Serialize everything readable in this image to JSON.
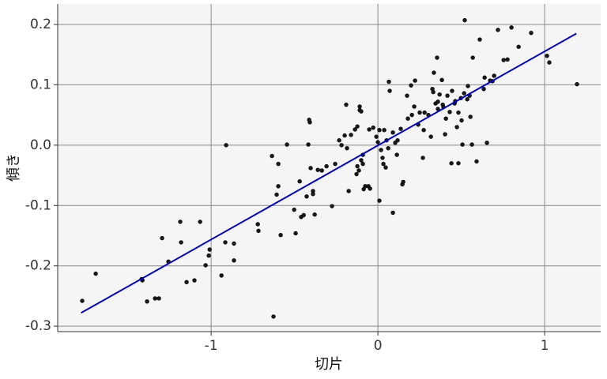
{
  "chart_data": {
    "type": "scatter",
    "xlabel": "切片",
    "ylabel": "傾き",
    "xlim": [
      -1.92,
      1.336
    ],
    "ylim": [
      -0.309,
      0.234
    ],
    "xticks": [
      -1,
      0,
      1
    ],
    "yticks": [
      0.2,
      0.1,
      {
        "value": 0,
        "label": "0.0"
      },
      -0.1,
      -0.2,
      -0.3
    ],
    "grid": true,
    "series": [
      {
        "kind": "markers",
        "color": "#1a1a1a",
        "x": [
          -1.773,
          -1.692,
          -1.412,
          -1.384,
          -1.417,
          -1.336,
          -1.313,
          -1.294,
          -1.256,
          -1.185,
          -1.18,
          -1.147,
          -1.1,
          -1.066,
          -1.033,
          -1.014,
          -1.009,
          -0.91,
          -0.915,
          -0.863,
          -0.863,
          -0.938,
          -0.72,
          -0.716,
          -0.626,
          -0.635,
          -0.607,
          -0.597,
          -0.597,
          -0.583,
          -0.545,
          -0.502,
          -0.493,
          -0.469,
          -0.46,
          -0.445,
          -0.427,
          -0.417,
          -0.408,
          -0.412,
          -0.389,
          -0.403,
          -0.389,
          -0.379,
          -0.36,
          -0.336,
          -0.308,
          -0.275,
          -0.256,
          -0.232,
          -0.218,
          -0.19,
          -0.199,
          -0.185,
          -0.175,
          -0.161,
          -0.137,
          -0.123,
          -0.128,
          -0.123,
          -0.114,
          -0.109,
          -0.109,
          -0.1,
          -0.1,
          -0.09,
          -0.085,
          -0.09,
          -0.076,
          -0.057,
          -0.052,
          -0.047,
          -0.028,
          -0.009,
          0,
          0.009,
          0.019,
          0.009,
          0.028,
          0.033,
          0.038,
          0.047,
          0.052,
          0.062,
          0.071,
          0.066,
          0.09,
          0.09,
          0.104,
          0.114,
          0.118,
          0.137,
          0.147,
          0.152,
          0.175,
          0.18,
          0.204,
          0.199,
          0.218,
          0.223,
          0.242,
          0.251,
          0.27,
          0.275,
          0.28,
          0.303,
          0.318,
          0.327,
          0.332,
          0.336,
          0.346,
          0.355,
          0.36,
          0.36,
          0.37,
          0.384,
          0.389,
          0.393,
          0.403,
          0.408,
          0.417,
          0.431,
          0.441,
          0.445,
          0.46,
          0.464,
          0.474,
          0.483,
          0.483,
          0.498,
          0.502,
          0.507,
          0.517,
          0.521,
          0.536,
          0.54,
          0.55,
          0.555,
          0.569,
          0.564,
          0.592,
          0.611,
          0.635,
          0.64,
          0.654,
          0.673,
          0.687,
          0.697,
          0.72,
          0.754,
          0.777,
          0.801,
          0.844,
          0.919,
          1.014,
          1.028,
          1.194
        ],
        "values": [
          -0.258,
          -0.213,
          -0.224,
          -0.259,
          -0.222,
          -0.254,
          -0.254,
          -0.154,
          -0.193,
          -0.127,
          -0.161,
          -0.227,
          -0.224,
          -0.127,
          -0.199,
          -0.183,
          -0.173,
          0.0,
          -0.161,
          -0.191,
          -0.163,
          -0.216,
          -0.131,
          -0.142,
          -0.284,
          -0.018,
          -0.082,
          -0.068,
          -0.031,
          -0.149,
          0.001,
          -0.107,
          -0.146,
          -0.06,
          -0.119,
          -0.116,
          -0.085,
          0.001,
          0.038,
          0.042,
          -0.076,
          -0.038,
          -0.081,
          -0.115,
          -0.041,
          -0.042,
          -0.035,
          -0.101,
          -0.031,
          0.008,
          0.0,
          0.067,
          0.016,
          -0.005,
          -0.076,
          0.017,
          0.026,
          0.031,
          -0.048,
          -0.035,
          -0.042,
          0.064,
          0.058,
          -0.025,
          0.056,
          -0.031,
          -0.073,
          -0.016,
          -0.068,
          -0.068,
          0.026,
          -0.072,
          0.029,
          0.014,
          0.005,
          0.025,
          -0.008,
          -0.092,
          -0.021,
          -0.031,
          0.025,
          -0.037,
          0.008,
          -0.005,
          0.09,
          0.105,
          -0.112,
          0.021,
          0.004,
          -0.016,
          0.008,
          0.027,
          -0.065,
          -0.061,
          0.082,
          0.044,
          0.05,
          0.099,
          0.064,
          0.107,
          0.034,
          0.054,
          -0.021,
          0.025,
          0.054,
          0.05,
          0.014,
          0.093,
          0.088,
          0.12,
          0.069,
          0.145,
          0.072,
          0.06,
          0.084,
          0.108,
          0.067,
          0.063,
          0.018,
          0.044,
          0.082,
          0.055,
          -0.03,
          0.09,
          0.069,
          0.073,
          0.03,
          -0.03,
          0.054,
          0.078,
          0.041,
          0.001,
          0.086,
          0.207,
          0.076,
          0.098,
          0.082,
          0.047,
          0.145,
          0.001,
          -0.027,
          0.175,
          0.093,
          0.112,
          0.004,
          0.107,
          0.106,
          0.115,
          0.191,
          0.141,
          0.142,
          0.195,
          0.163,
          0.186,
          0.148,
          0.137,
          0.101
        ]
      },
      {
        "kind": "line",
        "color": "#0000cd",
        "x": [
          -1.78,
          1.19
        ],
        "values": [
          -0.278,
          0.185
        ]
      }
    ]
  }
}
